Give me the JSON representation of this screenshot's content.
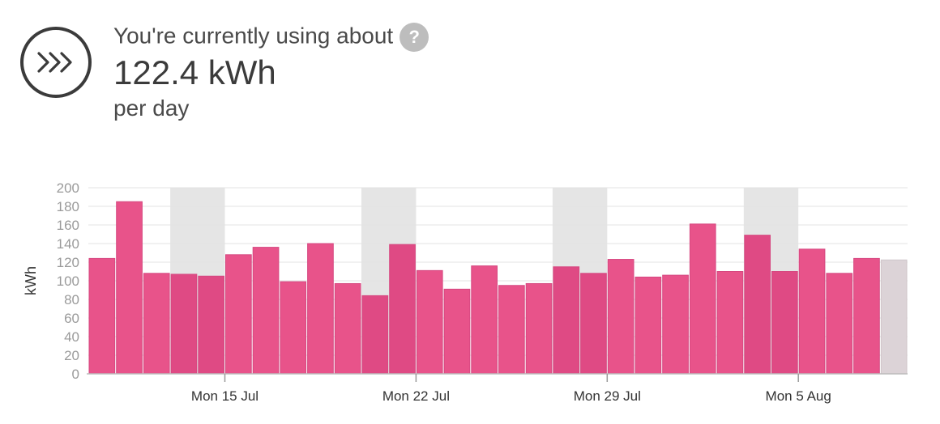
{
  "header": {
    "lead_text": "You're currently using about",
    "help_glyph": "?",
    "usage_value": "122.4 kWh",
    "per_text": "per day",
    "icon": "fast-forward-chevrons-icon"
  },
  "colors": {
    "bar": "#e8538a",
    "bar_alt": "#df4a84",
    "estimate_bar": "#dcd3d7",
    "weekend_band": "#e5e5e5",
    "grid": "#e3e3e3"
  },
  "chart_data": {
    "type": "bar",
    "ylabel": "kWh",
    "ylim": [
      0,
      200
    ],
    "yticks": [
      0,
      20,
      40,
      60,
      80,
      100,
      120,
      140,
      160,
      180,
      200
    ],
    "xtick_labels": [
      "Mon 15 Jul",
      "Mon 22 Jul",
      "Mon 29 Jul",
      "Mon 5 Aug"
    ],
    "xtick_bar_index": [
      5,
      12,
      19,
      26
    ],
    "weekend_bar_index": [
      3,
      10,
      17,
      24
    ],
    "values": [
      124,
      185,
      108,
      107,
      105,
      128,
      136,
      99,
      140,
      97,
      84,
      139,
      111,
      91,
      116,
      95,
      97,
      115,
      108,
      123,
      104,
      106,
      161,
      110,
      149,
      110,
      134,
      108,
      124,
      122.4
    ],
    "estimate_index": 29,
    "grid": true
  }
}
